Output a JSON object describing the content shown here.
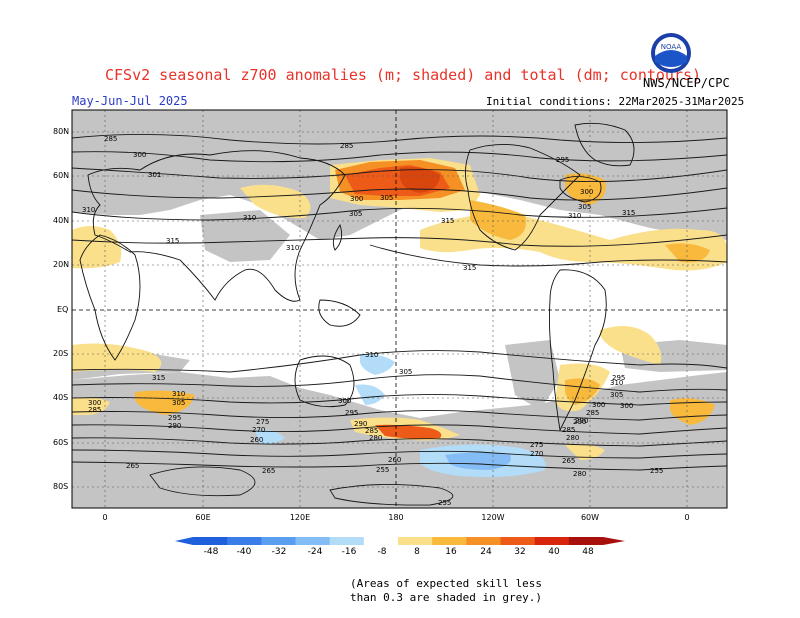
{
  "header": {
    "title": "CFSv2 seasonal z700 anomalies (m; shaded) and total (dm; contours)",
    "agency": "NWS/NCEP/CPC",
    "period": "May-Jun-Jul 2025",
    "initial": "Initial conditions: 22Mar2025-31Mar2025",
    "logo_text": "NOAA"
  },
  "axes": {
    "lat_labels": [
      "80N",
      "60N",
      "40N",
      "20N",
      "EQ",
      "20S",
      "40S",
      "60S",
      "80S"
    ],
    "lon_labels": [
      "0",
      "60E",
      "120E",
      "180",
      "120W",
      "60W",
      "0"
    ]
  },
  "contour_labels": [
    "285",
    "285",
    "300",
    "301",
    "295",
    "300",
    "305",
    "310",
    "300",
    "305",
    "310",
    "310",
    "315",
    "315",
    "315",
    "315",
    "310",
    "305",
    "310",
    "305",
    "300",
    "295",
    "290",
    "285",
    "315",
    "310",
    "305",
    "300",
    "295",
    "290",
    "285",
    "280",
    "275",
    "270",
    "265",
    "260",
    "255",
    "295",
    "300",
    "310",
    "305",
    "300",
    "290",
    "285",
    "280",
    "275",
    "270",
    "265",
    "260",
    "255",
    "280",
    "285",
    "290",
    "265",
    "255"
  ],
  "colorbar": {
    "labels": [
      "-48",
      "-40",
      "-32",
      "-24",
      "-16",
      "-8",
      "8",
      "16",
      "24",
      "32",
      "40",
      "48"
    ],
    "colors": [
      "#1e5fdc",
      "#3a7de8",
      "#5a9ef0",
      "#84bdf5",
      "#b2dcf8",
      "#ffffff",
      "#fbe08c",
      "#f8b93c",
      "#f49024",
      "#ee5a17",
      "#d8260e",
      "#a8100c"
    ]
  },
  "anomaly_colors": {
    "positive_weak": "#fbe08c",
    "positive_moderate": "#f8b93c",
    "positive_strong": "#f27a1e",
    "positive_max": "#e8461a",
    "negative_weak": "#b2dcf8",
    "negative_moderate": "#84bdf5",
    "low_skill": "#c0c0c0"
  },
  "note": {
    "line1": "(Areas of expected skill less",
    "line2": "than 0.3 are shaded in grey.)"
  }
}
